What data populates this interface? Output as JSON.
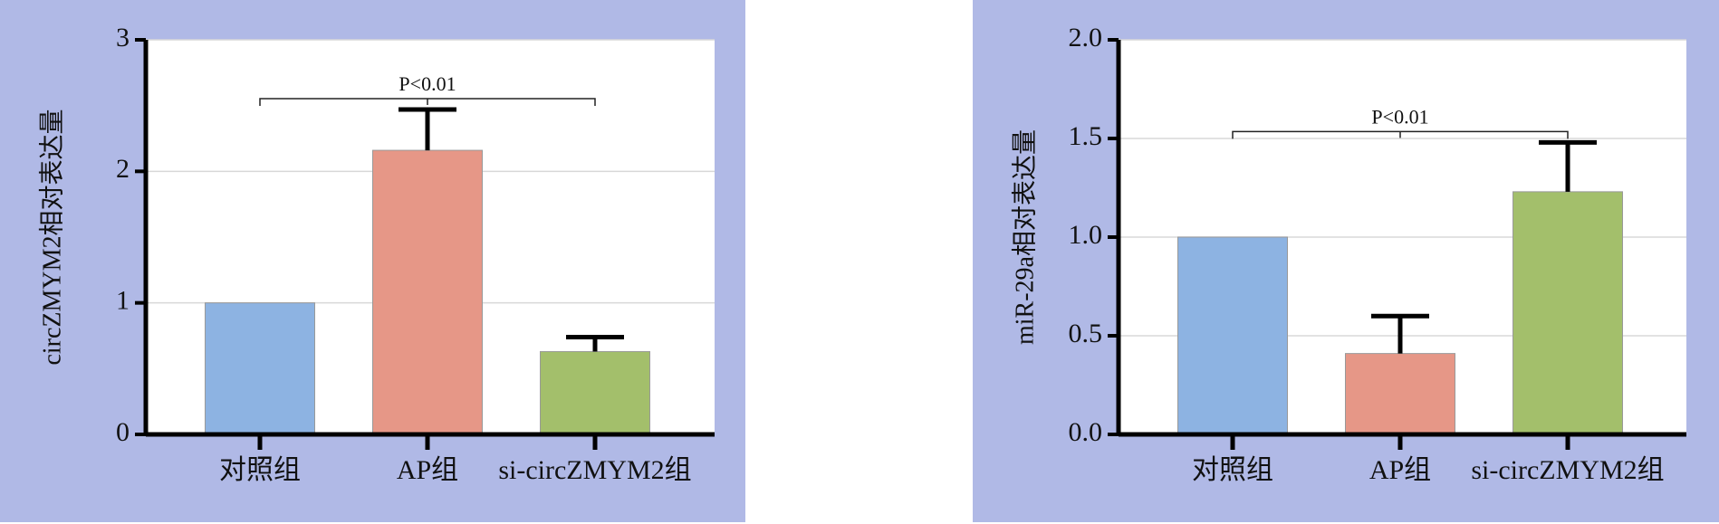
{
  "chart_data": [
    {
      "type": "bar",
      "y_label": "circZMYM2相对表达量",
      "categories": [
        "对照组",
        "AP组",
        "si-circZMYM2组"
      ],
      "values": [
        1.0,
        2.16,
        0.63
      ],
      "errors": [
        null,
        0.31,
        0.11
      ],
      "colors": [
        "#8db3e2",
        "#e69787",
        "#a3bf6b"
      ],
      "ylim": [
        0,
        3
      ],
      "yticks": [
        0,
        1,
        2,
        3
      ],
      "grid": true,
      "annotation": "P<0.01",
      "annotation_span": [
        0,
        2
      ]
    },
    {
      "type": "bar",
      "y_label": "miR-29a相对表达量",
      "categories": [
        "对照组",
        "AP组",
        "si-circZMYM2组"
      ],
      "values": [
        1.0,
        0.41,
        1.23
      ],
      "errors": [
        null,
        0.19,
        0.25
      ],
      "colors": [
        "#8db3e2",
        "#e69787",
        "#a3bf6b"
      ],
      "ylim": [
        0,
        2
      ],
      "yticks": [
        {
          "value": 0,
          "label": "0.0"
        },
        {
          "value": 0.5,
          "label": "0.5"
        },
        {
          "value": 1,
          "label": "1.0"
        },
        {
          "value": 1.5,
          "label": "1.5"
        },
        {
          "value": 2,
          "label": "2.0"
        }
      ],
      "grid": true,
      "annotation": "P<0.01",
      "annotation_span": [
        0,
        2
      ]
    }
  ]
}
